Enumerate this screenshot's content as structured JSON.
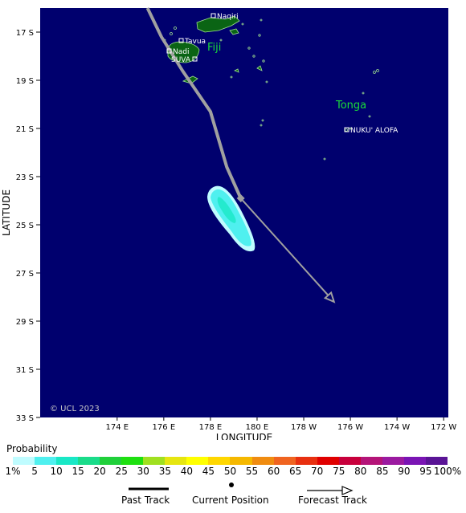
{
  "map": {
    "lat_labels": [
      "17 S",
      "19 S",
      "21 S",
      "23 S",
      "25 S",
      "27 S",
      "29 S",
      "31 S",
      "33 S"
    ],
    "lon_labels": [
      "174 E",
      "176 E",
      "178 E",
      "180 E",
      "178 W",
      "176 W",
      "174 W",
      "172 W"
    ],
    "x_axis_title": "LONGITUDE",
    "y_axis_title": "LATITUDE",
    "copyright": "© UCL 2023",
    "country_labels": [
      "Fiji",
      "Tonga"
    ],
    "places": [
      "Naqiri",
      "Tavua",
      "Nadi",
      "SUVA",
      "NUKU' ALOFA"
    ]
  },
  "track": {
    "past": [
      [
        175.3,
        16.0
      ],
      [
        175.9,
        17.2
      ],
      [
        176.8,
        18.6
      ],
      [
        178.0,
        20.3
      ],
      [
        178.7,
        22.6
      ],
      [
        179.3,
        23.9
      ]
    ],
    "current": [
      179.3,
      23.9
    ],
    "forecast_end": [
      183.3,
      28.2
    ]
  },
  "legend": {
    "title": "Probability",
    "ticks": [
      "1%",
      "5",
      "10",
      "15",
      "20",
      "25",
      "30",
      "35",
      "40",
      "45",
      "50",
      "55",
      "60",
      "65",
      "70",
      "75",
      "80",
      "85",
      "90",
      "95",
      "100%"
    ],
    "colors": [
      "#bffcff",
      "#4ff0ef",
      "#19e8c6",
      "#1adc8a",
      "#20d03a",
      "#1ee010",
      "#a0e020",
      "#e6e610",
      "#ffff00",
      "#ffd700",
      "#f5b800",
      "#f08c10",
      "#f06420",
      "#e83010",
      "#e00000",
      "#c8003c",
      "#b41478",
      "#9b1aa0",
      "#7a14b4",
      "#5a1496"
    ],
    "past_track_label": "Past Track",
    "current_position_label": "Current Position",
    "forecast_track_label": "Forecast Track"
  }
}
